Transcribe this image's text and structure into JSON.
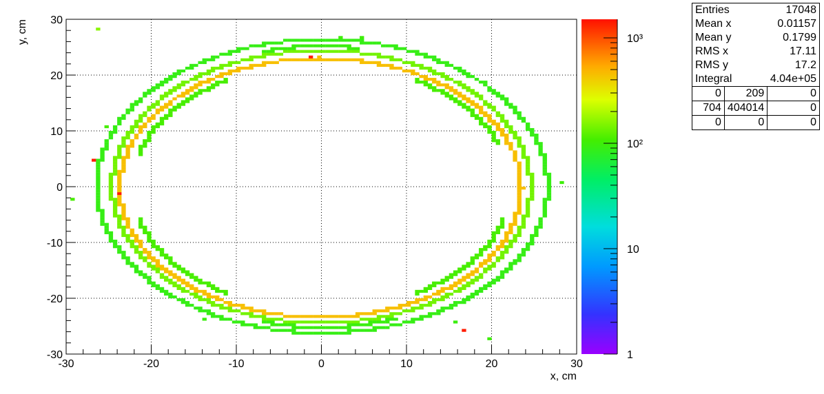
{
  "chart_data": {
    "type": "heatmap",
    "title": "",
    "xlabel": "x, cm",
    "ylabel": "y, cm",
    "xlim": [
      -30,
      30
    ],
    "ylim": [
      -30,
      30
    ],
    "x_ticks": [
      "-30",
      "-20",
      "-10",
      "0",
      "10",
      "20",
      "30"
    ],
    "y_ticks": [
      "-30",
      "-20",
      "-10",
      "0",
      "10",
      "20",
      "30"
    ],
    "grid": true,
    "colorbar": {
      "scale": "log",
      "range": [
        1,
        1500
      ],
      "ticks": [
        {
          "value": 1,
          "label": "1"
        },
        {
          "value": 10,
          "label": "10"
        },
        {
          "value": 100,
          "label": "10²"
        },
        {
          "value": 1000,
          "label": "10³"
        }
      ]
    },
    "rings": [
      {
        "name": "inner-orange",
        "cx": -0.1,
        "cy": -0.2,
        "rx": 23.6,
        "ry": 23.2,
        "value": 450
      },
      {
        "name": "mid-green",
        "cx": 0.0,
        "cy": 0.0,
        "rx": 24.6,
        "ry": 24.4,
        "value": 140
      },
      {
        "name": "outer-green",
        "cx": 0.1,
        "cy": 0.1,
        "rx": 26.5,
        "ry": 26.3,
        "value": 90
      }
    ],
    "arcs": [
      {
        "cx": 0.0,
        "cy": 0.0,
        "rx": 22.2,
        "ry": 22.0,
        "from_deg": 20,
        "to_deg": 60,
        "value": 110
      },
      {
        "cx": 0.0,
        "cy": 0.0,
        "rx": 22.2,
        "ry": 22.0,
        "from_deg": 120,
        "to_deg": 165,
        "value": 110
      },
      {
        "cx": 0.0,
        "cy": 0.0,
        "rx": 22.2,
        "ry": 22.0,
        "from_deg": 195,
        "to_deg": 240,
        "value": 110
      },
      {
        "cx": 0.0,
        "cy": 0.0,
        "rx": 22.2,
        "ry": 22.0,
        "from_deg": 300,
        "to_deg": 345,
        "value": 110
      },
      {
        "cx": 0.0,
        "cy": 0.0,
        "rx": 25.4,
        "ry": 25.2,
        "from_deg": 80,
        "to_deg": 105,
        "value": 95
      },
      {
        "cx": 0.0,
        "cy": 0.0,
        "rx": 25.4,
        "ry": 25.2,
        "from_deg": 255,
        "to_deg": 290,
        "value": 95
      }
    ],
    "outliers": [
      {
        "x": -26.5,
        "y": 28.0,
        "value": 160
      },
      {
        "x": -26.9,
        "y": 4.8,
        "value": 1400
      },
      {
        "x": -23.8,
        "y": -1.1,
        "value": 1400
      },
      {
        "x": -1.1,
        "y": 23.2,
        "value": 1400
      },
      {
        "x": 16.9,
        "y": -25.7,
        "value": 1400
      },
      {
        "x": 19.7,
        "y": -27.3,
        "value": 100
      },
      {
        "x": -29.3,
        "y": -2.3,
        "value": 110
      },
      {
        "x": 28.3,
        "y": 0.6,
        "value": 100
      },
      {
        "x": -13.8,
        "y": -23.8,
        "value": 95
      },
      {
        "x": 15.8,
        "y": -24.4,
        "value": 95
      },
      {
        "x": 2.0,
        "y": 26.7,
        "value": 100
      },
      {
        "x": 4.6,
        "y": 26.6,
        "value": 100
      },
      {
        "x": -25.2,
        "y": 10.5,
        "value": 110
      },
      {
        "x": 25.4,
        "y": -8.8,
        "value": 100
      }
    ]
  },
  "stats": {
    "rows": [
      {
        "label": "Entries",
        "value": "17048"
      },
      {
        "label": "Mean x",
        "value": "0.01157"
      },
      {
        "label": "Mean y",
        "value": "0.1799"
      },
      {
        "label": "RMS x",
        "value": "17.11"
      },
      {
        "label": "RMS y",
        "value": "17.2"
      },
      {
        "label": "Integral",
        "value": "4.04e+05"
      }
    ],
    "grid": [
      [
        "0",
        "209",
        "0"
      ],
      [
        "704",
        "404014",
        "0"
      ],
      [
        "0",
        "0",
        "0"
      ]
    ]
  }
}
